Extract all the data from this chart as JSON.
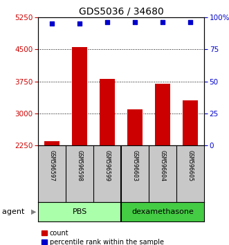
{
  "title": "GDS5036 / 34680",
  "samples": [
    "GSM596597",
    "GSM596598",
    "GSM596599",
    "GSM596603",
    "GSM596604",
    "GSM596605"
  ],
  "bar_heights": [
    2350,
    4550,
    3800,
    3100,
    3700,
    3300
  ],
  "percentile_values": [
    95,
    95,
    96,
    96,
    96,
    96
  ],
  "ylim_left": [
    2250,
    5250
  ],
  "ylim_right": [
    0,
    100
  ],
  "yticks_left": [
    2250,
    3000,
    3750,
    4500,
    5250
  ],
  "yticks_right": [
    0,
    25,
    50,
    75,
    100
  ],
  "ytick_labels_right": [
    "0",
    "25",
    "50",
    "75",
    "100%"
  ],
  "grid_vals": [
    3000,
    3750,
    4500
  ],
  "bar_color": "#cc0000",
  "dot_color": "#0000cc",
  "pbs_color": "#aaffaa",
  "dex_color": "#44cc44",
  "pbs_label": "PBS",
  "dex_label": "dexamethasone",
  "agent_label": "agent",
  "legend_count_label": "count",
  "legend_percentile_label": "percentile rank within the sample",
  "title_fontsize": 10,
  "tick_fontsize": 7.5,
  "sample_fontsize": 6,
  "group_fontsize": 8,
  "legend_fontsize": 7
}
